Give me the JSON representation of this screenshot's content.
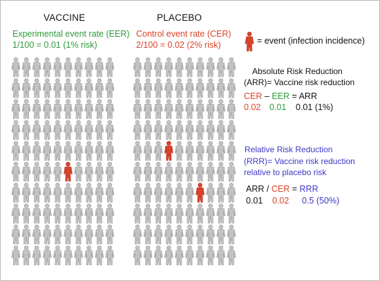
{
  "colors": {
    "green": "#2f9a3a",
    "red": "#d9442a",
    "blue": "#3d37c8",
    "figure_normal": "#c3c3c3",
    "figure_stroke": "#9a9a9a",
    "figure_event": "#d9442a",
    "text": "#111111"
  },
  "vaccine": {
    "heading": "VACCINE",
    "rate_label": "Experimental event rate (EER)",
    "rate_value": "1/100 = 0.01 (1% risk)",
    "grid": {
      "rows": 10,
      "cols": 10
    },
    "events": [
      {
        "row": 6,
        "col": 6
      }
    ]
  },
  "placebo": {
    "heading": "PLACEBO",
    "rate_label": "Control event rate (CER)",
    "rate_value": "2/100 = 0.02 (2% risk)",
    "grid": {
      "rows": 10,
      "cols": 10
    },
    "events": [
      {
        "row": 5,
        "col": 4
      },
      {
        "row": 7,
        "col": 7
      }
    ]
  },
  "legend": {
    "icon": "person-icon",
    "text": "= event (infection incidence)"
  },
  "arr": {
    "title_line1": "Absolute Risk Reduction",
    "title_line2": "(ARR)= Vaccine risk reduction",
    "eq_cer": "CER",
    "eq_minus": "–",
    "eq_eer": "EER",
    "eq_equals": "= ARR",
    "val_cer": "0.02",
    "val_eer": "0.01",
    "val_arr": "0.01 (1%)"
  },
  "rrr": {
    "title_line1": "Relative Risk Reduction",
    "title_line2": "(RRR)= Vaccine risk reduction",
    "title_line3": "relative to placebo risk",
    "eq_arr": "ARR /",
    "eq_cer": "CER",
    "eq_equals": "=",
    "eq_rrr": "RRR",
    "val_arr": "0.01",
    "val_cer": "0.02",
    "val_rrr": "0.5 (50%)"
  }
}
